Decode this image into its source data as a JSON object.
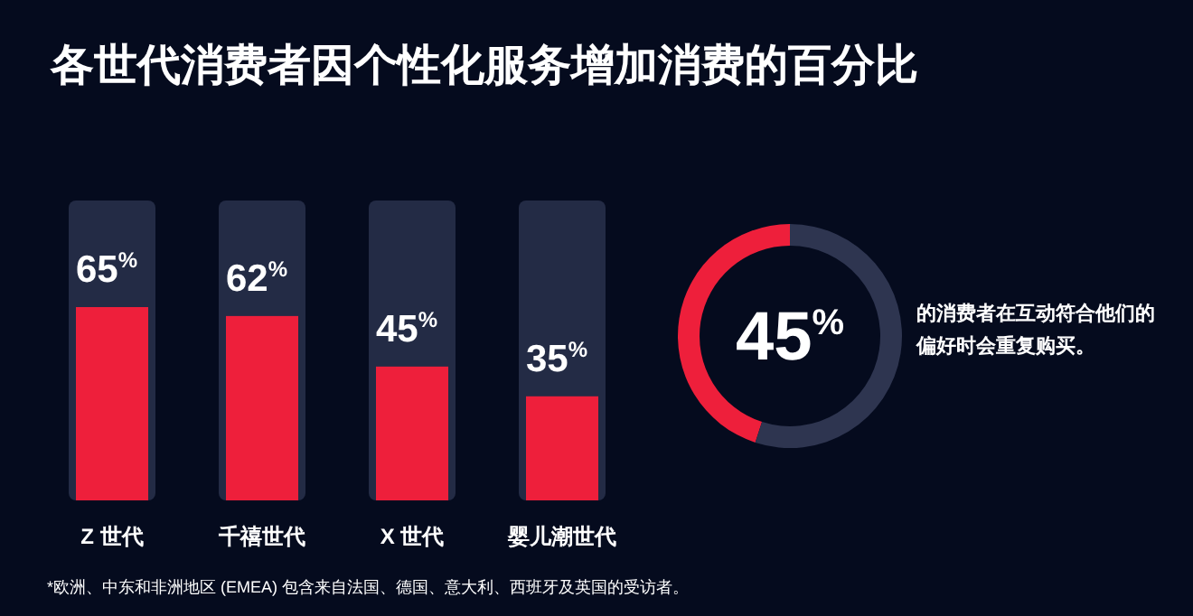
{
  "chart_data": [
    {
      "type": "bar",
      "title": "各世代消费者因个性化服务增加消费的百分比",
      "categories": [
        "Z 世代",
        "千禧世代",
        "X 世代",
        "婴儿潮世代"
      ],
      "values": [
        65,
        62,
        45,
        35
      ],
      "value_labels": [
        "65$^{%}$",
        "62$^{%}$",
        "45$^{%}$",
        "35$^{%}$"
      ],
      "color": "#ee1f3b",
      "annotations": [
        "*欧洲、中东和非洲地区 (EMEA) 包含来自法国、德国、意大利、西班牙及英国的受访者。"
      ]
    },
    {
      "type": "donut",
      "categories": [
        null,
        null
      ],
      "values": [
        45,
        55
      ],
      "colors": [
        "#ee1f3b",
        "#2e3550"
      ],
      "value_labels": [
        "45$^{%}$",
        null
      ],
      "annotations": [
        "的消费者在互动符合他们的偏好时会重复购买。"
      ]
    }
  ]
}
